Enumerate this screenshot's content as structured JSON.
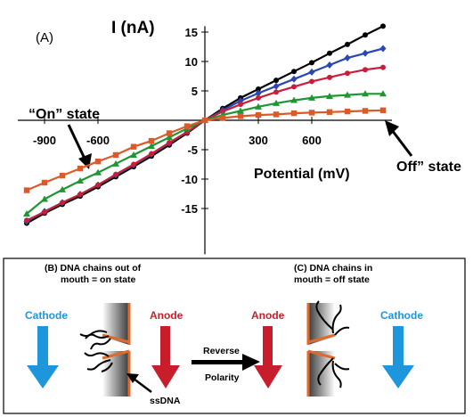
{
  "chart_data": {
    "type": "line",
    "panel_label": "(A)",
    "ylabel": "I (nA)",
    "xlabel": "Potential (mV)",
    "xlim": [
      -1050,
      1050
    ],
    "ylim": [
      -19,
      16
    ],
    "x_ticks": [
      -900,
      -600,
      300,
      600
    ],
    "x_tick_labels": [
      "-900",
      "-600",
      "300",
      "600"
    ],
    "y_ticks": [
      -15,
      -10,
      -5,
      5,
      10,
      15
    ],
    "y_tick_labels": [
      "-15",
      "-10",
      "-5",
      "5",
      "10",
      "15"
    ],
    "grid": false,
    "annotations": {
      "on_state": "“On” state",
      "off_state": "Off” state"
    },
    "x": [
      -1000,
      -900,
      -800,
      -700,
      -600,
      -500,
      -400,
      -300,
      -200,
      -100,
      0,
      100,
      200,
      300,
      400,
      500,
      600,
      700,
      800,
      900,
      1000
    ],
    "series": [
      {
        "color": "#000000",
        "marker": "circle",
        "values": [
          -17.5,
          -15.8,
          -14.3,
          -12.9,
          -11.3,
          -9.6,
          -7.9,
          -6.1,
          -4.2,
          -2.2,
          0,
          2.0,
          3.8,
          5.3,
          6.8,
          8.3,
          9.8,
          11.4,
          12.9,
          14.5,
          16.0
        ]
      },
      {
        "color": "#2846b4",
        "marker": "diamond",
        "values": [
          -17.2,
          -15.5,
          -14.0,
          -12.6,
          -11.0,
          -9.3,
          -7.6,
          -5.8,
          -3.9,
          -2.0,
          0,
          1.7,
          3.3,
          4.6,
          5.8,
          7.0,
          8.2,
          9.4,
          10.6,
          11.4,
          12.2
        ]
      },
      {
        "color": "#c81e3c",
        "marker": "circle",
        "values": [
          -17.0,
          -15.6,
          -14.0,
          -12.6,
          -11.0,
          -9.2,
          -7.5,
          -5.7,
          -3.8,
          -2.0,
          0,
          1.5,
          2.7,
          3.8,
          4.8,
          5.7,
          6.6,
          7.3,
          8.0,
          8.6,
          9.0
        ]
      },
      {
        "color": "#1e9632",
        "marker": "triangle",
        "values": [
          -15.9,
          -13.4,
          -11.8,
          -10.3,
          -8.9,
          -7.4,
          -5.9,
          -4.4,
          -2.9,
          -1.4,
          0,
          0.9,
          1.6,
          2.3,
          2.9,
          3.4,
          3.8,
          4.1,
          4.3,
          4.5,
          4.5
        ]
      },
      {
        "color": "#dc5a28",
        "marker": "square",
        "values": [
          -11.9,
          -10.6,
          -9.4,
          -8.2,
          -7.0,
          -5.9,
          -4.5,
          -3.5,
          -2.2,
          -1.0,
          0,
          0.4,
          0.7,
          0.9,
          1.0,
          1.2,
          1.3,
          1.4,
          1.5,
          1.6,
          1.7
        ]
      }
    ]
  },
  "schematic": {
    "panel_b_title": "(B) DNA chains out of",
    "panel_b_title2": "mouth =    on state",
    "panel_c_title": "(C)  DNA chains in",
    "panel_c_title2": "mouth =    off state",
    "cathode_left": "Cathode",
    "anode_left": "Anode",
    "anode_right": "Anode",
    "cathode_right": "Cathode",
    "reverse": "Reverse",
    "polarity": "Polarity",
    "ssdna": "ssDNA",
    "color_cathode": "#1e96dc",
    "color_anode": "#c81e2c",
    "color_surface": "#e06a2a"
  }
}
